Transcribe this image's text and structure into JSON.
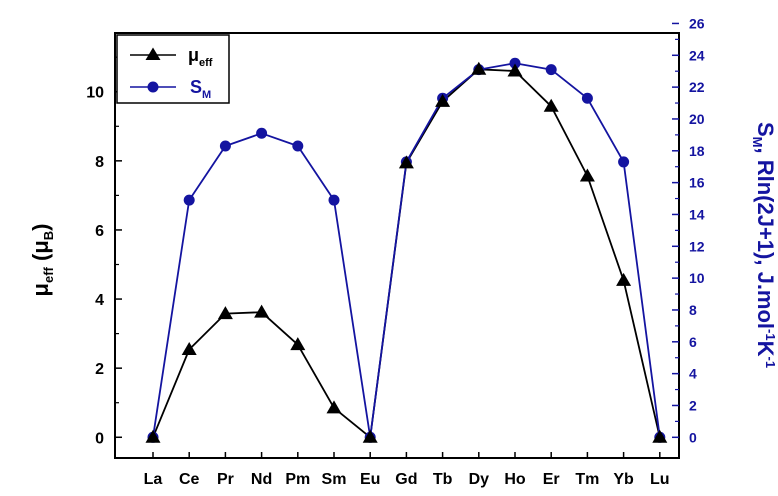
{
  "chart_data": {
    "type": "line",
    "categories": [
      "La",
      "Ce",
      "Pr",
      "Nd",
      "Pm",
      "Sm",
      "Eu",
      "Gd",
      "Tb",
      "Dy",
      "Ho",
      "Er",
      "Tm",
      "Yb",
      "Lu"
    ],
    "series": [
      {
        "name": "μeff",
        "name_main": "μ",
        "name_sub": "eff",
        "axis": "left",
        "marker": "triangle",
        "color": "#000000",
        "values": [
          0,
          2.54,
          3.58,
          3.62,
          2.68,
          0.85,
          0,
          7.94,
          9.72,
          10.65,
          10.6,
          9.58,
          7.56,
          4.54,
          0
        ]
      },
      {
        "name": "SM",
        "name_main": "S",
        "name_sub": "M",
        "axis": "right",
        "marker": "circle",
        "color": "#1414a0",
        "values": [
          0,
          14.9,
          18.3,
          19.1,
          18.3,
          14.9,
          0,
          17.3,
          21.3,
          23.1,
          23.5,
          23.1,
          21.3,
          17.3,
          0
        ]
      }
    ],
    "ylim_left": [
      -0.6,
      11.7
    ],
    "ylim_right": [
      -1.3,
      25.4
    ],
    "yticks_left": [
      "0",
      "2",
      "4",
      "6",
      "8",
      "10"
    ],
    "yticks_right": [
      "0",
      "2",
      "4",
      "6",
      "8",
      "10",
      "12",
      "14",
      "16",
      "18",
      "20",
      "22",
      "24",
      "26"
    ],
    "ylabel_left": {
      "main": "μ",
      "sub": "eff",
      "rest_open": " (μ",
      "sub2": "B",
      "rest_close": ")"
    },
    "ylabel_right": {
      "main": "S",
      "sub": "M",
      "mid": ", Rln(2J+1), J.mol",
      "sup1": "-1",
      "k": "K",
      "sup2": "-1"
    },
    "legend_position": "top-left",
    "colors": {
      "left_axis": "#000000",
      "right_axis": "#1414a0"
    }
  }
}
